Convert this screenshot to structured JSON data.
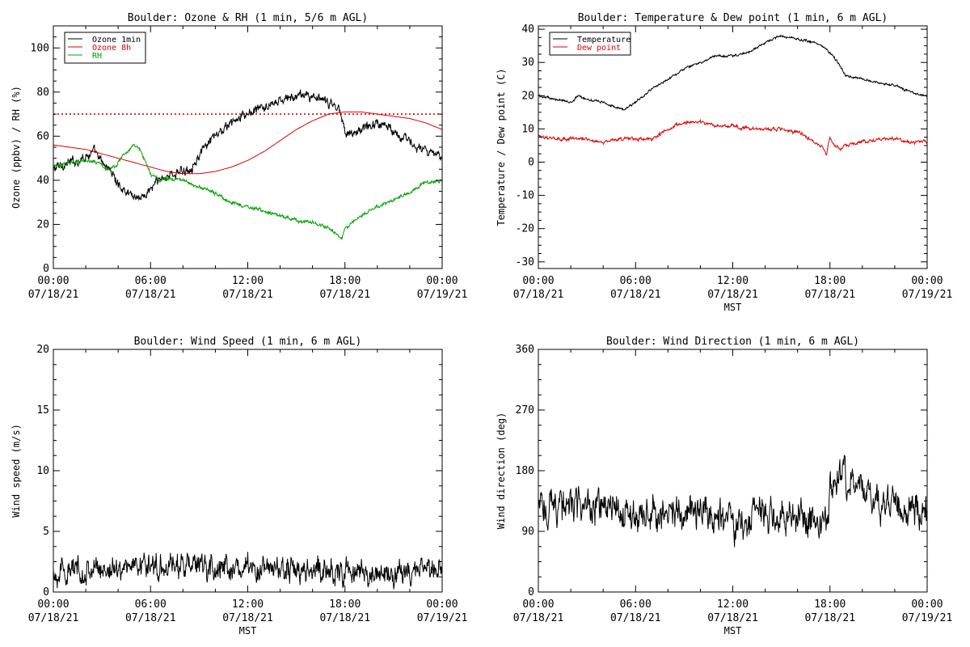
{
  "chart_data": [
    {
      "type": "line",
      "title": "Boulder: Ozone & RH (1 min, 5/6 m AGL)",
      "xlabel": "",
      "ylabel": "Ozone (ppbv) / RH (%)",
      "xlim": [
        0,
        24
      ],
      "ylim": [
        0,
        110
      ],
      "yticks": [
        0,
        20,
        40,
        60,
        80,
        100
      ],
      "xtick_hours": [
        0,
        6,
        12,
        18,
        24
      ],
      "xtick_times": [
        "00:00",
        "06:00",
        "12:00",
        "18:00",
        "00:00"
      ],
      "xtick_dates": [
        "07/18/21",
        "07/18/21",
        "07/18/21",
        "07/18/21",
        "07/19/21"
      ],
      "legend_position": "top-left",
      "reference_line": {
        "y": 70,
        "color": "#dd0000",
        "style": "dotted"
      },
      "series": [
        {
          "name": "Ozone 1min",
          "color": "#000000",
          "noise": 1.5,
          "x": [
            0,
            0.5,
            1,
            1.5,
            2,
            2.5,
            3,
            3.5,
            4,
            4.5,
            5,
            5.5,
            6,
            6.5,
            7,
            7.5,
            8,
            8.5,
            9,
            9.5,
            10,
            10.5,
            11,
            11.5,
            12,
            12.5,
            13,
            13.5,
            14,
            14.5,
            15,
            15.5,
            16,
            16.5,
            17,
            17.5,
            17.7,
            17.9,
            18,
            18.5,
            19,
            19.5,
            20,
            20.5,
            21,
            21.5,
            22,
            22.5,
            23,
            23.5,
            24
          ],
          "values": [
            45,
            47,
            48,
            49,
            51,
            53,
            48,
            45,
            38,
            35,
            33,
            32,
            36,
            40,
            42,
            43,
            44,
            46,
            51,
            56,
            60,
            63,
            66,
            68,
            70,
            72,
            73,
            74,
            76,
            77,
            78,
            79,
            78,
            76,
            75,
            73,
            72,
            67,
            62,
            61,
            63,
            65,
            66,
            65,
            63,
            60,
            57,
            55,
            53,
            51,
            52
          ]
        },
        {
          "name": "Ozone 8h",
          "color": "#dd0000",
          "noise": 0,
          "x": [
            0,
            1,
            2,
            3,
            4,
            5,
            6,
            7,
            8,
            9,
            10,
            11,
            12,
            13,
            14,
            15,
            16,
            17,
            18,
            19,
            20,
            21,
            22,
            23,
            24
          ],
          "values": [
            56,
            55,
            54,
            52,
            50,
            48,
            46,
            44,
            43,
            43,
            44,
            46,
            49,
            53,
            58,
            63,
            67,
            70,
            71,
            71,
            70,
            69,
            68,
            66,
            63
          ]
        },
        {
          "name": "RH",
          "color": "#00a000",
          "noise": 0.6,
          "x": [
            0,
            1,
            2,
            3,
            3.5,
            4,
            4.5,
            5,
            5.3,
            5.7,
            6,
            6.5,
            7,
            8,
            9,
            10,
            11,
            12,
            13,
            14,
            15,
            16,
            17,
            17.5,
            17.8,
            18,
            18.5,
            19,
            20,
            21,
            22,
            23,
            24
          ],
          "values": [
            46,
            48,
            49,
            47,
            44,
            48,
            53,
            56,
            55,
            48,
            43,
            40,
            41,
            40,
            37,
            34,
            30,
            28,
            26,
            24,
            22,
            21,
            18,
            16,
            13,
            18,
            21,
            24,
            28,
            31,
            35,
            39,
            40
          ]
        }
      ]
    },
    {
      "type": "line",
      "title": "Boulder: Temperature & Dew point (1 min, 6 m AGL)",
      "xlabel": "MST",
      "ylabel": "Temperature / Dew point (C)",
      "xlim": [
        0,
        24
      ],
      "ylim": [
        -32,
        41
      ],
      "yticks": [
        -30,
        -20,
        -10,
        0,
        10,
        20,
        30,
        40
      ],
      "xtick_hours": [
        0,
        6,
        12,
        18,
        24
      ],
      "xtick_times": [
        "00:00",
        "06:00",
        "12:00",
        "18:00",
        "00:00"
      ],
      "xtick_dates": [
        "07/18/21",
        "07/18/21",
        "07/18/21",
        "07/18/21",
        "07/19/21"
      ],
      "legend_position": "top-left",
      "series": [
        {
          "name": "Temperature",
          "color": "#000000",
          "noise": 0.25,
          "x": [
            0,
            1,
            2,
            2.5,
            3,
            4,
            5,
            5.3,
            6,
            7,
            8,
            9,
            10,
            11,
            12,
            13,
            14,
            15,
            16,
            17,
            17.5,
            18,
            18.5,
            19,
            20,
            21,
            22,
            23,
            24
          ],
          "values": [
            20,
            19,
            18,
            20,
            19,
            18,
            16,
            16,
            18,
            22,
            25,
            28,
            30,
            32,
            32,
            33,
            36,
            38,
            37,
            36,
            35,
            33,
            30,
            26,
            25,
            24,
            23,
            21,
            20
          ]
        },
        {
          "name": "Dew point",
          "color": "#dd0000",
          "noise": 0.35,
          "x": [
            0,
            1,
            2,
            3,
            4,
            5,
            6,
            7,
            8,
            9,
            10,
            11,
            12,
            13,
            14,
            15,
            16,
            16.5,
            17,
            17.5,
            17.7,
            17.8,
            17.9,
            18,
            18.3,
            18.6,
            19,
            20,
            21,
            22,
            23,
            24
          ],
          "values": [
            8,
            7,
            7,
            7,
            6,
            7,
            7,
            7,
            10,
            12,
            12,
            11,
            11,
            10,
            10,
            10,
            9,
            8,
            6,
            5,
            3,
            2,
            6,
            7,
            5,
            4,
            5,
            6,
            7,
            7,
            6,
            6
          ]
        }
      ]
    },
    {
      "type": "line",
      "title": "Boulder: Wind Speed (1 min, 6 m AGL)",
      "xlabel": "MST",
      "ylabel": "Wind speed (m/s)",
      "xlim": [
        0,
        24
      ],
      "ylim": [
        0,
        20
      ],
      "yticks": [
        0,
        5,
        10,
        15,
        20
      ],
      "xtick_hours": [
        0,
        6,
        12,
        18,
        24
      ],
      "xtick_times": [
        "00:00",
        "06:00",
        "12:00",
        "18:00",
        "00:00"
      ],
      "xtick_dates": [
        "07/18/21",
        "07/18/21",
        "07/18/21",
        "07/18/21",
        "07/19/21"
      ],
      "legend_position": "none",
      "series": [
        {
          "name": "",
          "color": "#000000",
          "noise": 0.7,
          "x": [
            0,
            2,
            4,
            5,
            6,
            8,
            10,
            12,
            14,
            16,
            18,
            20,
            21,
            22,
            23,
            24
          ],
          "values": [
            1.6,
            1.8,
            2.0,
            2.3,
            2.2,
            2.2,
            2.0,
            1.9,
            1.9,
            1.8,
            1.6,
            1.5,
            1.4,
            1.7,
            1.8,
            1.9
          ]
        }
      ]
    },
    {
      "type": "line",
      "title": "Boulder: Wind Direction (1 min, 6 m AGL)",
      "xlabel": "MST",
      "ylabel": "Wind direction (deg)",
      "xlim": [
        0,
        24
      ],
      "ylim": [
        0,
        360
      ],
      "yticks": [
        0,
        90,
        180,
        270,
        360
      ],
      "xtick_hours": [
        0,
        6,
        12,
        18,
        24
      ],
      "xtick_times": [
        "00:00",
        "06:00",
        "12:00",
        "18:00",
        "00:00"
      ],
      "xtick_dates": [
        "07/18/21",
        "07/18/21",
        "07/18/21",
        "07/18/21",
        "07/19/21"
      ],
      "legend_position": "none",
      "series": [
        {
          "name": "",
          "color": "#000000",
          "noise": 18,
          "x": [
            0,
            1,
            2,
            3,
            4,
            5,
            6,
            7,
            8,
            9,
            10,
            11,
            11.5,
            12,
            12.5,
            13,
            13.5,
            14,
            15,
            16,
            17,
            17.9,
            18,
            18.5,
            19,
            19.5,
            20,
            21,
            22,
            23,
            24
          ],
          "values": [
            125,
            130,
            130,
            125,
            120,
            118,
            115,
            118,
            120,
            118,
            118,
            118,
            110,
            100,
            105,
            110,
            120,
            115,
            115,
            110,
            105,
            100,
            160,
            175,
            170,
            165,
            150,
            135,
            125,
            125,
            120
          ]
        }
      ]
    }
  ]
}
